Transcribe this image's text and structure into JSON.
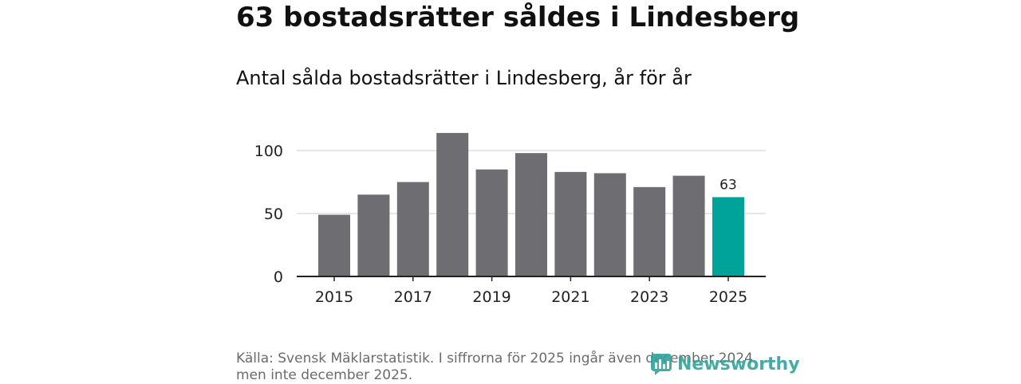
{
  "header": {
    "title": "63 bostadsrätter såldes i Lindesberg",
    "subtitle": "Antal sålda bostadsrätter i Lindesberg, år för år"
  },
  "footer": {
    "source": "Källa: Svensk Mäklarstatistik. I siffrorna för 2025 ingår även december 2024 men inte december 2025.",
    "brand": "Newsworthy"
  },
  "colors": {
    "bar": "#6e6d72",
    "highlight": "#00a39a",
    "grid": "#dddddd",
    "axis": "#222222",
    "brand": "#2fa59c"
  },
  "chart_data": {
    "type": "bar",
    "title": "Antal sålda bostadsrätter i Lindesberg, år för år",
    "xlabel": "",
    "ylabel": "",
    "categories": [
      "2015",
      "2016",
      "2017",
      "2018",
      "2019",
      "2020",
      "2021",
      "2022",
      "2023",
      "2024",
      "2025"
    ],
    "values": [
      49,
      65,
      75,
      114,
      85,
      98,
      83,
      82,
      71,
      80,
      63
    ],
    "highlight_index": 10,
    "highlight_label": "63",
    "ylim": [
      0,
      120
    ],
    "yticks": [
      0,
      50,
      100
    ],
    "xtick_labels": [
      "2015",
      "2017",
      "2019",
      "2021",
      "2023",
      "2025"
    ],
    "grid": true
  }
}
